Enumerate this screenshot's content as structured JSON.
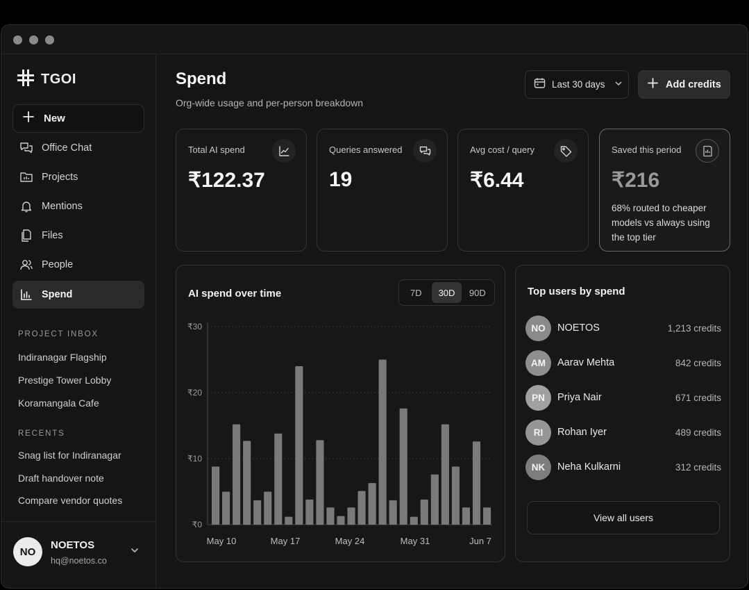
{
  "app": {
    "brand": "TGOI"
  },
  "sidebar": {
    "new_label": "New",
    "items": [
      {
        "label": "Office Chat",
        "icon": "chat-icon",
        "active": false
      },
      {
        "label": "Projects",
        "icon": "folder-icon",
        "active": false
      },
      {
        "label": "Mentions",
        "icon": "bell-icon",
        "active": false
      },
      {
        "label": "Files",
        "icon": "files-icon",
        "active": false
      },
      {
        "label": "People",
        "icon": "people-icon",
        "active": false
      },
      {
        "label": "Spend",
        "icon": "bar-chart-icon",
        "active": true
      }
    ],
    "project_inbox_label": "PROJECT INBOX",
    "project_inbox": [
      "Indiranagar Flagship",
      "Prestige Tower Lobby",
      "Koramangala Cafe"
    ],
    "recents_label": "RECENTS",
    "recents": [
      "Snag list for Indiranagar",
      "Draft handover note",
      "Compare vendor quotes"
    ],
    "user": {
      "initials": "NO",
      "name": "NOETOS",
      "email": "hq@noetos.co"
    }
  },
  "header": {
    "title": "Spend",
    "subtitle": "Org-wide usage and per-person breakdown",
    "range_label": "Last 30 days",
    "add_credits_label": "Add credits"
  },
  "stats": [
    {
      "label": "Total AI spend",
      "value": "₹122.37",
      "icon": "trend-icon"
    },
    {
      "label": "Queries answered",
      "value": "19",
      "icon": "chat-bubbles-icon"
    },
    {
      "label": "Avg cost / query",
      "value": "₹6.44",
      "icon": "tag-icon"
    },
    {
      "label": "Saved this period",
      "value": "₹216",
      "note": "68% routed to cheaper models vs always using the top tier",
      "icon": "receipt-icon"
    }
  ],
  "spend_chart": {
    "title": "AI spend over time",
    "ranges": [
      "7D",
      "30D",
      "90D"
    ],
    "active_range": "30D"
  },
  "chart_data": {
    "type": "bar",
    "title": "AI spend over time",
    "x_tick_labels": [
      "May 10",
      "May 17",
      "May 24",
      "May 31",
      "Jun 7"
    ],
    "y_tick_labels": [
      "₹0",
      "₹10",
      "₹20",
      "₹30"
    ],
    "ylim": [
      0,
      30
    ],
    "grid": true,
    "values": [
      8.8,
      5.0,
      15.2,
      12.7,
      3.7,
      5.0,
      13.8,
      1.2,
      24.0,
      3.8,
      12.8,
      2.6,
      1.3,
      2.6,
      5.1,
      6.3,
      25.0,
      3.7,
      17.6,
      1.2,
      3.8,
      7.6,
      15.2,
      8.8,
      2.6,
      12.6,
      2.6
    ],
    "xlabel": "",
    "ylabel": ""
  },
  "top_users": {
    "title": "Top users by spend",
    "users": [
      {
        "initials": "NO",
        "name": "NOETOS",
        "credits": "1,213 credits",
        "color": "#8a8a8a"
      },
      {
        "initials": "AM",
        "name": "Aarav Mehta",
        "credits": "842 credits",
        "color": "#8e8e8e"
      },
      {
        "initials": "PN",
        "name": "Priya Nair",
        "credits": "671 credits",
        "color": "#a0a0a0"
      },
      {
        "initials": "RI",
        "name": "Rohan Iyer",
        "credits": "489 credits",
        "color": "#969696"
      },
      {
        "initials": "NK",
        "name": "Neha Kulkarni",
        "credits": "312 credits",
        "color": "#7d7d7d"
      }
    ],
    "view_all_label": "View all users"
  }
}
